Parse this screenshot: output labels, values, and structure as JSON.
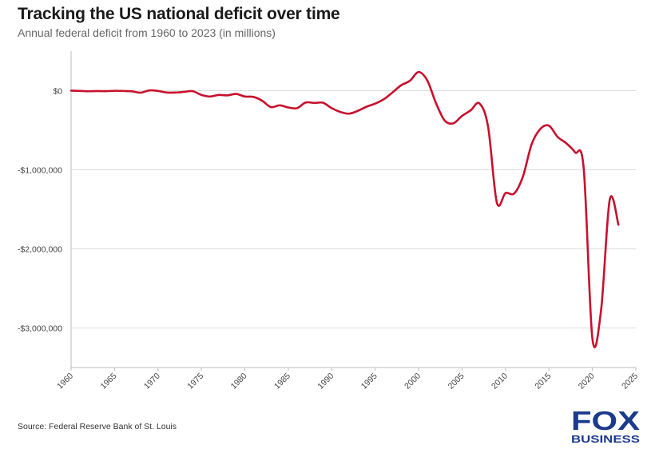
{
  "header": {
    "title": "Tracking the US national deficit over time",
    "subtitle": "Annual federal deficit from 1960 to 2023 (in millions)"
  },
  "footer": {
    "source": "Source: Federal Reserve Bank of St. Louis"
  },
  "logo": {
    "line1": "FOX",
    "line2": "BUSINESS",
    "color": "#1a3a8c"
  },
  "colors": {
    "line": "#c8102e",
    "grid": "#dddddd",
    "axis": "#bbbbbb"
  },
  "chart_data": {
    "type": "line",
    "title": "Tracking the US national deficit over time",
    "subtitle": "Annual federal deficit from 1960 to 2023 (in millions)",
    "xlabel": "",
    "ylabel": "",
    "xlim": [
      1960,
      2025
    ],
    "ylim": [
      -3500000,
      500000
    ],
    "x_ticks": [
      1960,
      1965,
      1970,
      1975,
      1980,
      1985,
      1990,
      1995,
      2000,
      2005,
      2010,
      2015,
      2020,
      2025
    ],
    "x_tick_labels": [
      "1960",
      "1965",
      "1970",
      "1975",
      "1980",
      "1985",
      "1990",
      "1995",
      "2000",
      "2005",
      "2010",
      "2015",
      "2020",
      "2025"
    ],
    "y_ticks": [
      0,
      -1000000,
      -2000000,
      -3000000
    ],
    "y_tick_labels": [
      "$0",
      "-$1,000,000",
      "-$2,000,000",
      "-$3,000,000"
    ],
    "grid": "horizontal",
    "legend": "none",
    "series": [
      {
        "color": "#c8102e",
        "x": [
          1960,
          1961,
          1962,
          1963,
          1964,
          1965,
          1966,
          1967,
          1968,
          1969,
          1970,
          1971,
          1972,
          1973,
          1974,
          1975,
          1976,
          1977,
          1978,
          1979,
          1980,
          1981,
          1982,
          1983,
          1984,
          1985,
          1986,
          1987,
          1988,
          1989,
          1990,
          1991,
          1992,
          1993,
          1994,
          1995,
          1996,
          1997,
          1998,
          1999,
          2000,
          2001,
          2002,
          2003,
          2004,
          2005,
          2006,
          2007,
          2008,
          2009,
          2010,
          2011,
          2012,
          2013,
          2014,
          2015,
          2016,
          2017,
          2018,
          2019,
          2020,
          2021,
          2022,
          2023
        ],
        "values": [
          300,
          -3300,
          -7100,
          -4800,
          -5900,
          -1400,
          -3700,
          -8600,
          -25200,
          3200,
          -2800,
          -23000,
          -23400,
          -14900,
          -6100,
          -53200,
          -73700,
          -53700,
          -59200,
          -40700,
          -73800,
          -79000,
          -128000,
          -207800,
          -185400,
          -212300,
          -221200,
          -149700,
          -155200,
          -152600,
          -221000,
          -269200,
          -290300,
          -255100,
          -203200,
          -164000,
          -107400,
          -21900,
          69300,
          125600,
          236200,
          128200,
          -157800,
          -377600,
          -412700,
          -318300,
          -248200,
          -160700,
          -458600,
          -1412700,
          -1294400,
          -1299600,
          -1087000,
          -679800,
          -484600,
          -442000,
          -584700,
          -665400,
          -779100,
          -983600,
          -3132400,
          -2775300,
          -1375900,
          -1695200
        ]
      }
    ]
  }
}
